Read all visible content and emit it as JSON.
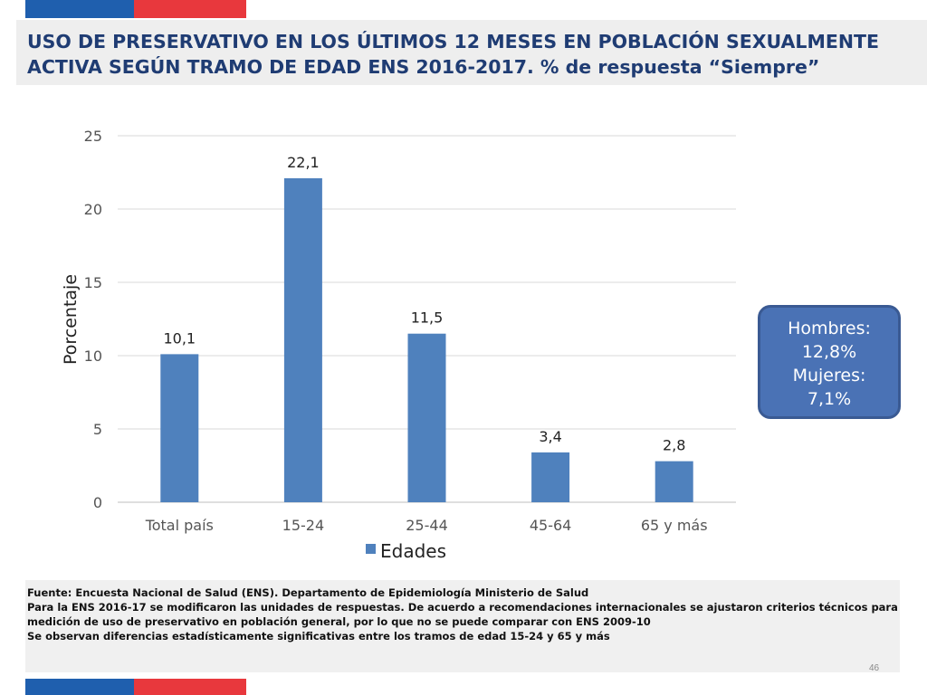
{
  "colors": {
    "red": "#e8383d",
    "blue": "#1f5fae",
    "bar": "#4f81bd",
    "title": "#1f3c73"
  },
  "title": "USO DE PRESERVATIVO EN LOS ÚLTIMOS 12 MESES EN POBLACIÓN SEXUALMENTE ACTIVA SEGÚN TRAMO DE EDAD ENS 2016-2017. % de respuesta “Siempre”",
  "callout": {
    "line1": "Hombres:",
    "line2": "12,8%",
    "line3": "Mujeres:",
    "line4": "7,1%"
  },
  "source": {
    "line1": "Fuente: Encuesta Nacional de Salud (ENS). Departamento de Epidemiología Ministerio de Salud",
    "line2": "Para la ENS 2016-17 se modificaron las unidades de respuestas. De acuerdo a recomendaciones internacionales se ajustaron criterios técnicos para medición de uso de preservativo en población general, por lo que no se puede comparar con ENS 2009-10",
    "line3": "Se observan diferencias estadísticamente significativas entre los tramos de edad 15-24 y 65 y más"
  },
  "page_number": "46",
  "chart_data": {
    "type": "bar",
    "categories": [
      "Total país",
      "15-24",
      "25-44",
      "45-64",
      "65 y más"
    ],
    "series": [
      {
        "name": "Edades",
        "values": [
          10.1,
          22.1,
          11.5,
          3.4,
          2.8
        ],
        "labels": [
          "10,1",
          "22,1",
          "11,5",
          "3,4",
          "2,8"
        ]
      }
    ],
    "ylabel": "Porcentaje",
    "xlabel": "",
    "ylim": [
      0,
      25
    ],
    "yticks": [
      0,
      5,
      10,
      15,
      20,
      25
    ],
    "grid": true,
    "legend": "bottom"
  }
}
